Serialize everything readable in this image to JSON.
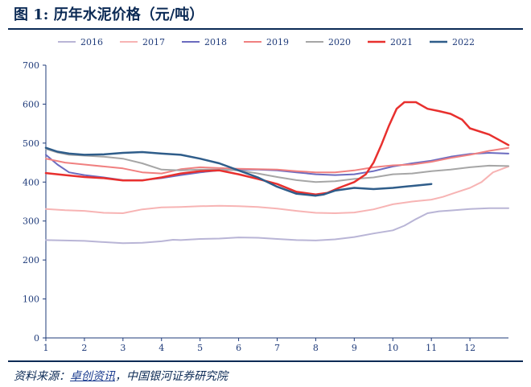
{
  "title": "图 1: 历年水泥价格（元/吨）",
  "source": {
    "prefix": "资料来源：",
    "link": "卓创资讯",
    "suffix": "，中国银河证券研究院"
  },
  "colors": {
    "2016": "#b9b5d6",
    "2017": "#f7b4b4",
    "2018": "#6b6bbf",
    "2019": "#f08080",
    "2020": "#a6a6a6",
    "2021": "#e8302e",
    "2022": "#2f5d8a",
    "text": "#1f3b7a",
    "rule": "#0b2a55"
  },
  "chart_data": {
    "type": "line",
    "title": "历年水泥价格（元/吨）",
    "xlabel": "",
    "ylabel": "",
    "ylim": [
      0,
      700
    ],
    "xlim": [
      1,
      13
    ],
    "yticks": [
      "0",
      "100",
      "200",
      "300",
      "400",
      "500",
      "600",
      "700"
    ],
    "xticks": [
      {
        "x": 1,
        "label": "1"
      },
      {
        "x": 2,
        "label": "2"
      },
      {
        "x": 3,
        "label": "3"
      },
      {
        "x": 4,
        "label": "4"
      },
      {
        "x": 5,
        "label": "5"
      },
      {
        "x": 6,
        "label": "6"
      },
      {
        "x": 7,
        "label": "7"
      },
      {
        "x": 8,
        "label": "8"
      },
      {
        "x": 9,
        "label": "9"
      },
      {
        "x": 10,
        "label": "10"
      },
      {
        "x": 11,
        "label": "11"
      },
      {
        "x": 12,
        "label": "12"
      }
    ],
    "grid": false,
    "legend": "top",
    "series": [
      {
        "name": "2016",
        "color": "#b9b5d6",
        "width": 2,
        "points": [
          [
            1,
            251
          ],
          [
            1.5,
            250
          ],
          [
            2,
            249
          ],
          [
            2.5,
            246
          ],
          [
            3,
            243
          ],
          [
            3.5,
            244
          ],
          [
            4,
            248
          ],
          [
            4.3,
            252
          ],
          [
            4.5,
            251
          ],
          [
            5,
            254
          ],
          [
            5.5,
            255
          ],
          [
            6,
            258
          ],
          [
            6.5,
            257
          ],
          [
            7,
            254
          ],
          [
            7.5,
            251
          ],
          [
            8,
            250
          ],
          [
            8.5,
            253
          ],
          [
            9,
            259
          ],
          [
            9.5,
            268
          ],
          [
            10,
            276
          ],
          [
            10.3,
            288
          ],
          [
            10.6,
            305
          ],
          [
            10.9,
            320
          ],
          [
            11.2,
            325
          ],
          [
            11.5,
            327
          ],
          [
            12,
            331
          ],
          [
            12.5,
            333
          ],
          [
            13,
            333
          ]
        ]
      },
      {
        "name": "2017",
        "color": "#f7b4b4",
        "width": 2,
        "points": [
          [
            1,
            331
          ],
          [
            1.5,
            328
          ],
          [
            2,
            326
          ],
          [
            2.5,
            321
          ],
          [
            3,
            320
          ],
          [
            3.5,
            330
          ],
          [
            4,
            335
          ],
          [
            4.5,
            336
          ],
          [
            5,
            338
          ],
          [
            5.5,
            339
          ],
          [
            6,
            338
          ],
          [
            6.5,
            336
          ],
          [
            7,
            332
          ],
          [
            7.5,
            326
          ],
          [
            8,
            321
          ],
          [
            8.5,
            320
          ],
          [
            9,
            322
          ],
          [
            9.5,
            330
          ],
          [
            10,
            343
          ],
          [
            10.5,
            350
          ],
          [
            11,
            355
          ],
          [
            11.3,
            362
          ],
          [
            11.6,
            372
          ],
          [
            12,
            385
          ],
          [
            12.3,
            400
          ],
          [
            12.6,
            425
          ],
          [
            13,
            440
          ]
        ]
      },
      {
        "name": "2018",
        "color": "#6b6bbf",
        "width": 2,
        "points": [
          [
            1,
            470
          ],
          [
            1.3,
            445
          ],
          [
            1.6,
            425
          ],
          [
            2,
            418
          ],
          [
            2.5,
            412
          ],
          [
            3,
            405
          ],
          [
            3.5,
            405
          ],
          [
            4,
            410
          ],
          [
            4.5,
            418
          ],
          [
            5,
            425
          ],
          [
            5.5,
            430
          ],
          [
            6,
            432
          ],
          [
            6.5,
            432
          ],
          [
            7,
            430
          ],
          [
            7.5,
            425
          ],
          [
            8,
            420
          ],
          [
            8.5,
            418
          ],
          [
            9,
            420
          ],
          [
            9.5,
            428
          ],
          [
            10,
            440
          ],
          [
            10.5,
            448
          ],
          [
            11,
            455
          ],
          [
            11.5,
            465
          ],
          [
            12,
            472
          ],
          [
            12.5,
            475
          ],
          [
            13,
            473
          ]
        ]
      },
      {
        "name": "2019",
        "color": "#f08080",
        "width": 2,
        "points": [
          [
            1,
            460
          ],
          [
            1.5,
            450
          ],
          [
            2,
            445
          ],
          [
            2.5,
            440
          ],
          [
            3,
            435
          ],
          [
            3.5,
            425
          ],
          [
            4,
            422
          ],
          [
            4.5,
            433
          ],
          [
            5,
            438
          ],
          [
            5.5,
            436
          ],
          [
            6,
            434
          ],
          [
            6.5,
            433
          ],
          [
            7,
            432
          ],
          [
            7.5,
            428
          ],
          [
            8,
            425
          ],
          [
            8.5,
            425
          ],
          [
            9,
            430
          ],
          [
            9.5,
            438
          ],
          [
            10,
            443
          ],
          [
            10.5,
            445
          ],
          [
            11,
            452
          ],
          [
            11.5,
            462
          ],
          [
            12,
            470
          ],
          [
            12.5,
            480
          ],
          [
            13,
            488
          ]
        ]
      },
      {
        "name": "2020",
        "color": "#a6a6a6",
        "width": 2,
        "points": [
          [
            1,
            485
          ],
          [
            1.3,
            476
          ],
          [
            1.6,
            470
          ],
          [
            2,
            468
          ],
          [
            2.5,
            465
          ],
          [
            3,
            460
          ],
          [
            3.5,
            448
          ],
          [
            4,
            432
          ],
          [
            4.5,
            430
          ],
          [
            5,
            432
          ],
          [
            5.5,
            432
          ],
          [
            6,
            430
          ],
          [
            6.5,
            422
          ],
          [
            7,
            413
          ],
          [
            7.5,
            405
          ],
          [
            8,
            400
          ],
          [
            8.5,
            402
          ],
          [
            9,
            408
          ],
          [
            9.5,
            412
          ],
          [
            10,
            420
          ],
          [
            10.5,
            422
          ],
          [
            11,
            428
          ],
          [
            11.5,
            432
          ],
          [
            12,
            438
          ],
          [
            12.5,
            442
          ],
          [
            13,
            441
          ]
        ]
      },
      {
        "name": "2021",
        "color": "#e8302e",
        "width": 2.5,
        "points": [
          [
            1,
            423
          ],
          [
            1.5,
            418
          ],
          [
            2,
            413
          ],
          [
            2.5,
            410
          ],
          [
            3,
            404
          ],
          [
            3.5,
            404
          ],
          [
            4,
            412
          ],
          [
            4.5,
            422
          ],
          [
            5,
            428
          ],
          [
            5.5,
            430
          ],
          [
            6,
            420
          ],
          [
            6.5,
            408
          ],
          [
            7,
            395
          ],
          [
            7.5,
            375
          ],
          [
            8,
            368
          ],
          [
            8.3,
            372
          ],
          [
            8.6,
            385
          ],
          [
            9,
            400
          ],
          [
            9.3,
            420
          ],
          [
            9.5,
            450
          ],
          [
            9.7,
            495
          ],
          [
            9.9,
            545
          ],
          [
            10.1,
            588
          ],
          [
            10.3,
            605
          ],
          [
            10.6,
            605
          ],
          [
            10.9,
            588
          ],
          [
            11.2,
            582
          ],
          [
            11.5,
            575
          ],
          [
            11.8,
            560
          ],
          [
            12,
            538
          ],
          [
            12.5,
            522
          ],
          [
            13,
            495
          ]
        ]
      },
      {
        "name": "2022",
        "color": "#2f5d8a",
        "width": 2.5,
        "points": [
          [
            1,
            488
          ],
          [
            1.3,
            478
          ],
          [
            1.6,
            473
          ],
          [
            2,
            470
          ],
          [
            2.5,
            471
          ],
          [
            3,
            475
          ],
          [
            3.5,
            477
          ],
          [
            4,
            473
          ],
          [
            4.5,
            470
          ],
          [
            5,
            460
          ],
          [
            5.5,
            448
          ],
          [
            6,
            430
          ],
          [
            6.5,
            412
          ],
          [
            7,
            388
          ],
          [
            7.5,
            370
          ],
          [
            8,
            365
          ],
          [
            8.2,
            368
          ],
          [
            8.5,
            378
          ],
          [
            9,
            385
          ],
          [
            9.5,
            382
          ],
          [
            10,
            385
          ],
          [
            10.5,
            390
          ],
          [
            11,
            395
          ]
        ]
      }
    ]
  }
}
